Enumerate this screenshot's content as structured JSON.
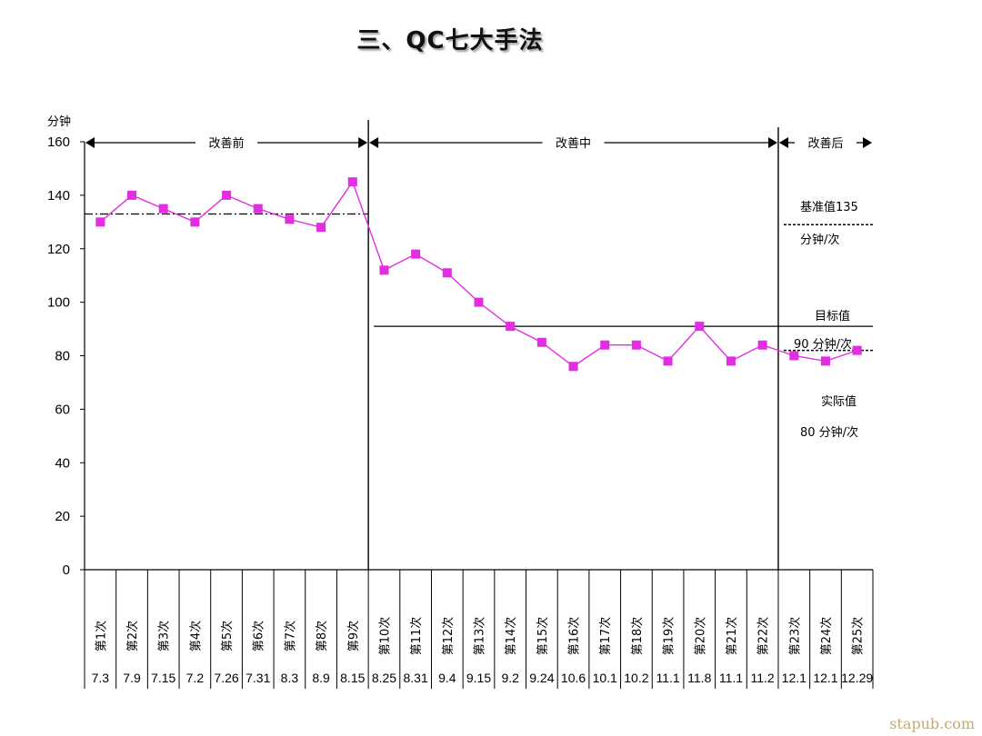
{
  "page": {
    "title": "三、QC七大手法",
    "watermark": "stapub.com"
  },
  "chart_data": {
    "type": "line",
    "ylabel": "分钟",
    "ylim": [
      0,
      160
    ],
    "yticks": [
      0,
      20,
      40,
      60,
      80,
      100,
      120,
      140,
      160
    ],
    "grid": false,
    "categories": [
      "第1次",
      "第2次",
      "第3次",
      "第4次",
      "第5次",
      "第6次",
      "第7次",
      "第8次",
      "第9次",
      "第10次",
      "第11次",
      "第12次",
      "第13次",
      "第14次",
      "第15次",
      "第16次",
      "第17次",
      "第18次",
      "第19次",
      "第20次",
      "第21次",
      "第22次",
      "第23次",
      "第24次",
      "第25次"
    ],
    "dates": [
      "7.3",
      "7.9",
      "7.15",
      "7.2",
      "7.26",
      "7.31",
      "8.3",
      "8.9",
      "8.15",
      "8.25",
      "8.31",
      "9.4",
      "9.15",
      "9.2",
      "9.24",
      "10.6",
      "10.1",
      "10.2",
      "11.1",
      "11.8",
      "11.1",
      "11.2",
      "12.1",
      "12.1",
      "12.29"
    ],
    "series": [
      {
        "values": [
          130,
          140,
          135,
          130,
          140,
          135,
          131,
          128,
          145,
          112,
          118,
          111,
          100,
          91,
          85,
          76,
          84,
          84,
          78,
          91,
          78,
          84,
          80,
          78,
          82
        ],
        "color": "#e32de3",
        "marker": "square"
      }
    ],
    "phases": [
      {
        "label": "改善前",
        "from": 1,
        "to": 9
      },
      {
        "label": "改善中",
        "from": 10,
        "to": 22
      },
      {
        "label": "改善后",
        "from": 23,
        "to": 25
      }
    ],
    "reference_lines": [
      {
        "value": 133,
        "style": "dash-dot",
        "x_from_category": 1,
        "x_to_category": 9.5
      },
      {
        "value": 129,
        "style": "dotted",
        "x_from_category": 23,
        "x_to_category": 25.5
      },
      {
        "value": 91,
        "style": "solid",
        "x_from_category": 10,
        "x_to_category": 25.5
      },
      {
        "value": 82,
        "style": "dotted",
        "x_from_category": 23,
        "x_to_category": 25.5
      }
    ],
    "annotations": {
      "baseline_label": "基准值135",
      "baseline_unit": "分钟/次",
      "target_label": "目标值",
      "target_value": "90 分钟/次",
      "actual_label": "实际值",
      "actual_value": "80 分钟/次"
    }
  }
}
